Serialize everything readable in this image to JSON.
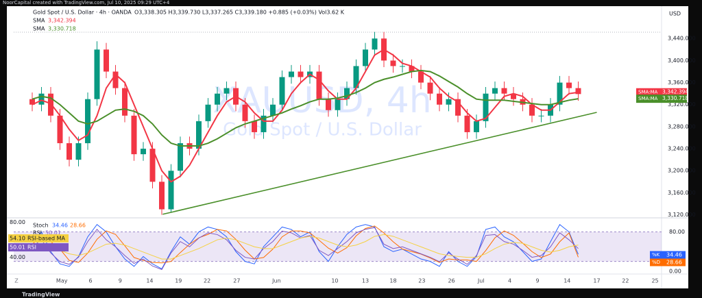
{
  "header": "NoorCapital created with TradingView.com, Jul 10, 2025 09:29 UTC+4",
  "footer": "TradingView",
  "timezone": "Z",
  "chart_data": [
    {
      "type": "candlestick",
      "title": "Gold Spot / U.S. Dollar · 4h · OANDA",
      "quote": "O3,338.305 H3,339.730 L3,337.265 C3,339.180 +0.885 (+0.03%) Vol3.62 K",
      "watermark": [
        "XAUUSD, 4h",
        "Gold Spot / U.S. Dollar"
      ],
      "currency": "USD",
      "up_color": "#089981",
      "down_color": "#f23645",
      "x": [
        0,
        1,
        2,
        3,
        4,
        5,
        6,
        7,
        8,
        9,
        10,
        11,
        12,
        13,
        14,
        15,
        16,
        17,
        18,
        19,
        20,
        21,
        22,
        23,
        24,
        25,
        26,
        27,
        28,
        29,
        30,
        31,
        32,
        33,
        34,
        35,
        36,
        37,
        38,
        39,
        40,
        41,
        42,
        43,
        44,
        45,
        46,
        47,
        48,
        49,
        50,
        51,
        52,
        53,
        54,
        55,
        56,
        57,
        58,
        59
      ],
      "open": [
        3330,
        3320,
        3340,
        3300,
        3250,
        3220,
        3250,
        3330,
        3420,
        3380,
        3350,
        3300,
        3230,
        3240,
        3180,
        3130,
        3200,
        3250,
        3240,
        3290,
        3320,
        3340,
        3350,
        3320,
        3290,
        3270,
        3300,
        3320,
        3370,
        3380,
        3370,
        3380,
        3330,
        3310,
        3330,
        3350,
        3390,
        3420,
        3440,
        3400,
        3390,
        3390,
        3380,
        3360,
        3340,
        3320,
        3330,
        3300,
        3270,
        3290,
        3340,
        3350,
        3340,
        3330,
        3320,
        3300,
        3300,
        3320,
        3360,
        3350
      ],
      "high": [
        3342,
        3352,
        3352,
        3312,
        3262,
        3262,
        3342,
        3435,
        3432,
        3392,
        3362,
        3312,
        3252,
        3252,
        3192,
        3212,
        3262,
        3262,
        3302,
        3332,
        3352,
        3362,
        3362,
        3332,
        3302,
        3312,
        3332,
        3382,
        3392,
        3392,
        3392,
        3392,
        3342,
        3342,
        3362,
        3402,
        3432,
        3452,
        3452,
        3412,
        3402,
        3402,
        3392,
        3372,
        3352,
        3342,
        3342,
        3312,
        3302,
        3352,
        3362,
        3362,
        3352,
        3342,
        3332,
        3312,
        3332,
        3372,
        3372,
        3362
      ],
      "low": [
        3308,
        3308,
        3288,
        3238,
        3208,
        3208,
        3238,
        3318,
        3368,
        3338,
        3288,
        3218,
        3218,
        3168,
        3120,
        3125,
        3188,
        3228,
        3228,
        3278,
        3308,
        3328,
        3308,
        3278,
        3258,
        3258,
        3288,
        3308,
        3358,
        3358,
        3358,
        3318,
        3298,
        3298,
        3318,
        3338,
        3378,
        3408,
        3388,
        3378,
        3378,
        3368,
        3348,
        3328,
        3308,
        3308,
        3288,
        3258,
        3258,
        3278,
        3328,
        3328,
        3318,
        3308,
        3288,
        3288,
        3288,
        3308,
        3338,
        3327
      ],
      "close": [
        3320,
        3340,
        3300,
        3250,
        3220,
        3250,
        3330,
        3420,
        3380,
        3350,
        3300,
        3230,
        3240,
        3180,
        3130,
        3200,
        3250,
        3240,
        3290,
        3320,
        3340,
        3350,
        3320,
        3290,
        3270,
        3300,
        3320,
        3370,
        3380,
        3370,
        3380,
        3330,
        3310,
        3330,
        3350,
        3390,
        3420,
        3440,
        3400,
        3390,
        3390,
        3380,
        3360,
        3340,
        3320,
        3330,
        3300,
        3270,
        3290,
        3340,
        3350,
        3340,
        3330,
        3320,
        3300,
        3300,
        3320,
        3360,
        3350,
        3339.18
      ],
      "series": [
        {
          "name": "SMA",
          "tag": "SMA:MA",
          "color": "#f23645",
          "last": {
            "value": 3342.394,
            "label": "3,342.394"
          },
          "values": [
            3320,
            3328,
            3322,
            3300,
            3275,
            3255,
            3265,
            3300,
            3350,
            3375,
            3360,
            3320,
            3280,
            3240,
            3200,
            3180,
            3190,
            3210,
            3240,
            3270,
            3300,
            3325,
            3335,
            3325,
            3305,
            3290,
            3290,
            3310,
            3340,
            3360,
            3375,
            3365,
            3345,
            3330,
            3330,
            3350,
            3380,
            3410,
            3420,
            3410,
            3395,
            3390,
            3380,
            3370,
            3350,
            3335,
            3325,
            3305,
            3290,
            3295,
            3315,
            3335,
            3340,
            3335,
            3320,
            3310,
            3310,
            3325,
            3340,
            3342.394
          ]
        },
        {
          "name": "SMA",
          "tag": "SMA:MA",
          "color": "#4a8f2a",
          "last": {
            "value": 3330.718,
            "label": "3,330.718"
          },
          "values": [
            3330,
            3335,
            3332,
            3320,
            3305,
            3290,
            3285,
            3290,
            3300,
            3310,
            3312,
            3308,
            3300,
            3285,
            3265,
            3250,
            3245,
            3245,
            3245,
            3250,
            3258,
            3268,
            3278,
            3285,
            3290,
            3295,
            3300,
            3305,
            3312,
            3318,
            3325,
            3330,
            3330,
            3332,
            3336,
            3342,
            3350,
            3360,
            3366,
            3370,
            3375,
            3380,
            3382,
            3380,
            3372,
            3362,
            3352,
            3340,
            3330,
            3328,
            3328,
            3328,
            3326,
            3324,
            3322,
            3320,
            3320,
            3324,
            3328,
            3330.718
          ]
        }
      ],
      "trendline": {
        "x": [
          14.1,
          61
        ],
        "y": [
          3121,
          3306
        ],
        "color": "#4a8f2a"
      },
      "xlim": [
        -2,
        68
      ],
      "xticks": [
        {
          "value": 3.2,
          "label": "May"
        },
        {
          "value": 6.3,
          "label": "6"
        },
        {
          "value": 9.5,
          "label": "9"
        },
        {
          "value": 12.7,
          "label": "14"
        },
        {
          "value": 15.8,
          "label": "19"
        },
        {
          "value": 18.9,
          "label": "22"
        },
        {
          "value": 22.1,
          "label": "27"
        },
        {
          "value": 26.4,
          "label": "Jun"
        },
        {
          "value": 32.7,
          "label": "10"
        },
        {
          "value": 36,
          "label": "13"
        },
        {
          "value": 39,
          "label": "18"
        },
        {
          "value": 42.1,
          "label": "23"
        },
        {
          "value": 45.3,
          "label": "26"
        },
        {
          "value": 48.5,
          "label": "Jul"
        },
        {
          "value": 51.6,
          "label": "4"
        },
        {
          "value": 54.6,
          "label": "9"
        },
        {
          "value": 57.8,
          "label": "14"
        },
        {
          "value": 61,
          "label": "17"
        },
        {
          "value": 64.1,
          "label": "22"
        },
        {
          "value": 67.3,
          "label": "25"
        }
      ],
      "ylim": [
        3117,
        3495
      ],
      "yticks": [
        {
          "value": 3120,
          "label": "3,120.000"
        },
        {
          "value": 3160,
          "label": "3,160.000"
        },
        {
          "value": 3200,
          "label": "3,200.000"
        },
        {
          "value": 3240,
          "label": "3,240.000"
        },
        {
          "value": 3280,
          "label": "3,280.000"
        },
        {
          "value": 3320,
          "label": "3,320.000"
        },
        {
          "value": 3360,
          "label": "3,360.000"
        },
        {
          "value": 3400,
          "label": "3,400.000"
        },
        {
          "value": 3440,
          "label": "3,440.000"
        }
      ]
    },
    {
      "type": "oscillator",
      "title": "Stoch",
      "ylim": [
        0,
        103
      ],
      "yticks": [
        {
          "value": 80,
          "label": "80.00"
        },
        {
          "value": 0,
          "label": "0.00"
        }
      ],
      "band": [
        20,
        80
      ],
      "y2lim": [
        24,
        82
      ],
      "y2ticks": [
        {
          "value": 80,
          "label": "80.00"
        },
        {
          "value": 40,
          "label": "40.00"
        }
      ],
      "series": [
        {
          "name": "%K",
          "color": "#2962ff",
          "last": 34.46,
          "values": [
            60,
            80,
            40,
            15,
            10,
            30,
            70,
            95,
            80,
            50,
            25,
            10,
            30,
            15,
            5,
            40,
            70,
            55,
            80,
            90,
            85,
            70,
            40,
            20,
            15,
            50,
            70,
            90,
            85,
            70,
            80,
            40,
            20,
            50,
            75,
            90,
            95,
            90,
            50,
            40,
            45,
            35,
            25,
            20,
            10,
            40,
            20,
            10,
            30,
            85,
            90,
            70,
            60,
            40,
            20,
            25,
            60,
            95,
            80,
            34.46
          ]
        },
        {
          "name": "%D",
          "color": "#ff6d00",
          "last": 28.66,
          "values": [
            55,
            70,
            60,
            45,
            22,
            18,
            37,
            65,
            82,
            75,
            52,
            28,
            22,
            18,
            17,
            20,
            38,
            55,
            68,
            75,
            85,
            82,
            65,
            43,
            25,
            28,
            45,
            70,
            82,
            82,
            78,
            63,
            47,
            37,
            48,
            72,
            87,
            92,
            78,
            60,
            45,
            40,
            35,
            27,
            18,
            25,
            23,
            23,
            20,
            42,
            68,
            82,
            73,
            57,
            40,
            28,
            35,
            60,
            78,
            28.66
          ]
        },
        {
          "name": "RSI",
          "color": "#7e57c2",
          "axis": "y2",
          "last": 50.01,
          "values": [
            52,
            60,
            45,
            35,
            32,
            40,
            58,
            72,
            60,
            52,
            42,
            33,
            38,
            30,
            26,
            45,
            58,
            52,
            62,
            68,
            66,
            60,
            48,
            40,
            38,
            50,
            58,
            70,
            68,
            62,
            65,
            48,
            42,
            50,
            58,
            68,
            72,
            74,
            55,
            50,
            52,
            48,
            44,
            40,
            35,
            45,
            38,
            32,
            42,
            65,
            66,
            58,
            55,
            48,
            40,
            42,
            52,
            68,
            60,
            50.01
          ]
        },
        {
          "name": "RSI-based MA",
          "color": "#f5d142",
          "axis": "y2",
          "last": {
            "value": 54.1,
            "label": "54.10"
          },
          "values": [
            50,
            52,
            51,
            48,
            44,
            42,
            45,
            50,
            55,
            56,
            54,
            50,
            46,
            42,
            38,
            38,
            42,
            46,
            50,
            55,
            60,
            62,
            60,
            56,
            52,
            50,
            50,
            54,
            58,
            62,
            64,
            62,
            58,
            54,
            52,
            54,
            58,
            64,
            66,
            64,
            60,
            56,
            52,
            48,
            44,
            42,
            41,
            40,
            40,
            44,
            50,
            55,
            57,
            56,
            52,
            48,
            46,
            48,
            52,
            54.1
          ]
        }
      ]
    }
  ]
}
